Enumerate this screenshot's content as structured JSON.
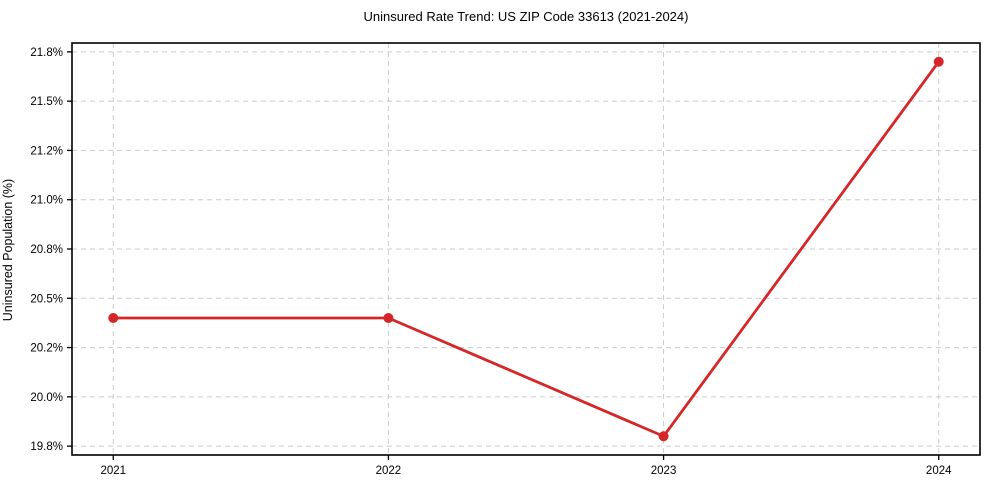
{
  "chart_data": {
    "type": "line",
    "title": "Uninsured Rate Trend: US ZIP Code 33613 (2021-2024)",
    "xlabel": "",
    "ylabel": "Uninsured Population (%)",
    "x": [
      2021,
      2022,
      2023,
      2024
    ],
    "series": [
      {
        "name": "Uninsured rate",
        "values": [
          20.4,
          20.4,
          19.8,
          21.7
        ]
      }
    ],
    "unit": "%",
    "xlim": [
      2020.85,
      2024.15
    ],
    "ylim": [
      19.705,
      21.795
    ],
    "xticks": {
      "values": [
        2021,
        2022,
        2023,
        2024
      ],
      "labels": [
        "2021",
        "2022",
        "2023",
        "2024"
      ]
    },
    "yticks": {
      "values": [
        19.75,
        20.0,
        20.25,
        20.5,
        20.75,
        21.0,
        21.25,
        21.5,
        21.75
      ],
      "labels": [
        "19.8%",
        "20.0%",
        "20.2%",
        "20.5%",
        "20.8%",
        "21.0%",
        "21.2%",
        "21.5%",
        "21.8%"
      ]
    },
    "grid": true,
    "grid_style": "dashed",
    "legend": null,
    "colors": {
      "line": "#d62728",
      "marker": "#d62728",
      "grid": "#cccccc",
      "spine": "#000000",
      "text": "#000000",
      "background": "#ffffff"
    },
    "marker": "circle",
    "marker_radius": 5,
    "line_width": 2.8
  }
}
